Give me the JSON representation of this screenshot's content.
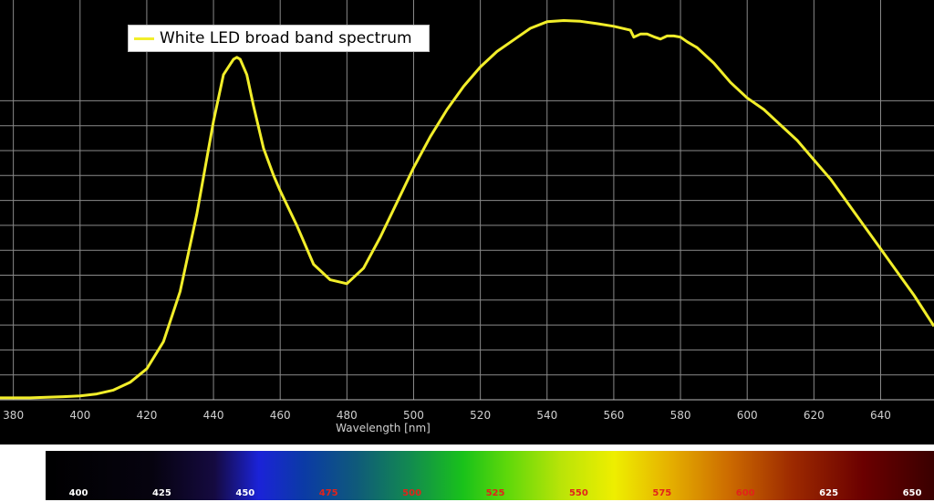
{
  "chart_data": {
    "type": "line",
    "title": "",
    "xlabel": "Wavelength [nm]",
    "ylabel": "",
    "xlim": [
      376,
      656
    ],
    "ylim": [
      0,
      1.0
    ],
    "x_ticks": [
      "380",
      "400",
      "420",
      "440",
      "460",
      "480",
      "500",
      "520",
      "540",
      "560",
      "580",
      "600",
      "620",
      "640"
    ],
    "grid": true,
    "legend": {
      "placement": "top-left",
      "entries": [
        "White LED broad band spectrum"
      ]
    },
    "series": [
      {
        "name": "White LED broad band spectrum",
        "color": "#f2ee2a",
        "x": [
          376,
          385,
          395,
          400,
          405,
          410,
          415,
          420,
          425,
          430,
          435,
          440,
          443,
          446,
          447,
          448,
          450,
          452,
          455,
          458,
          460,
          465,
          470,
          475,
          480,
          485,
          490,
          495,
          500,
          505,
          510,
          515,
          520,
          525,
          530,
          535,
          540,
          545,
          550,
          555,
          560,
          565,
          566,
          568,
          570,
          572,
          574,
          576,
          578,
          580,
          582,
          585,
          590,
          595,
          600,
          605,
          610,
          615,
          620,
          625,
          630,
          635,
          640,
          645,
          650,
          656
        ],
        "y": [
          0.005,
          0.005,
          0.008,
          0.01,
          0.015,
          0.025,
          0.045,
          0.08,
          0.15,
          0.28,
          0.48,
          0.72,
          0.84,
          0.88,
          0.885,
          0.88,
          0.84,
          0.76,
          0.65,
          0.58,
          0.54,
          0.45,
          0.35,
          0.31,
          0.3,
          0.34,
          0.42,
          0.51,
          0.6,
          0.68,
          0.75,
          0.81,
          0.86,
          0.9,
          0.93,
          0.96,
          0.977,
          0.98,
          0.978,
          0.972,
          0.965,
          0.955,
          0.937,
          0.945,
          0.945,
          0.938,
          0.932,
          0.94,
          0.94,
          0.937,
          0.925,
          0.91,
          0.87,
          0.82,
          0.78,
          0.75,
          0.71,
          0.67,
          0.62,
          0.57,
          0.51,
          0.45,
          0.39,
          0.33,
          0.27,
          0.19
        ]
      }
    ]
  },
  "spectrum_bar": {
    "labels": [
      {
        "text": "400",
        "color": "#ffffff"
      },
      {
        "text": "425",
        "color": "#ffffff"
      },
      {
        "text": "450",
        "color": "#ffffff"
      },
      {
        "text": "475",
        "color": "#e2231a"
      },
      {
        "text": "500",
        "color": "#e2231a"
      },
      {
        "text": "525",
        "color": "#e2231a"
      },
      {
        "text": "550",
        "color": "#e2231a"
      },
      {
        "text": "575",
        "color": "#e2231a"
      },
      {
        "text": "600",
        "color": "#e2231a"
      },
      {
        "text": "625",
        "color": "#ffffff"
      },
      {
        "text": "650",
        "color": "#ffffff"
      }
    ]
  }
}
